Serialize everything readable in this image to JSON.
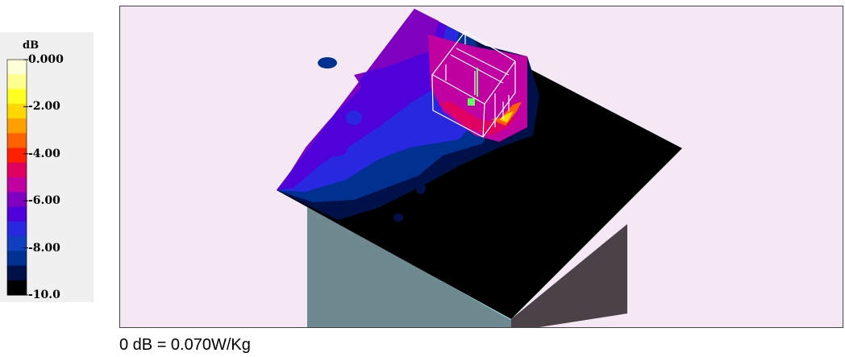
{
  "chart_data": {
    "type": "heatmap",
    "title": "",
    "colorbar": {
      "unit_label": "dB",
      "tick_labels": [
        "0.000",
        "-2.00",
        "-4.00",
        "-6.00",
        "-8.00",
        "-10.0"
      ],
      "tick_values": [
        0,
        -2,
        -4,
        -6,
        -8,
        -10
      ],
      "range": [
        -10,
        0
      ],
      "colors": [
        "#ffffd8",
        "#ffff90",
        "#ffff20",
        "#ffd800",
        "#ffa000",
        "#ff6000",
        "#ff2000",
        "#e00060",
        "#c000a0",
        "#8000c0",
        "#5000d8",
        "#2828e0",
        "#1040c0",
        "#003090",
        "#001048",
        "#000000"
      ]
    },
    "reference_note": "0 dB = 0.070W/Kg"
  },
  "colors": {
    "background": "#f4e8f4",
    "phantom_left_face": "#6e8a90",
    "phantom_right_face": "#4a4248",
    "edge_highlight": "#a0ffff",
    "device_outline": "#ffffff",
    "feed_point": "#60ff60"
  }
}
